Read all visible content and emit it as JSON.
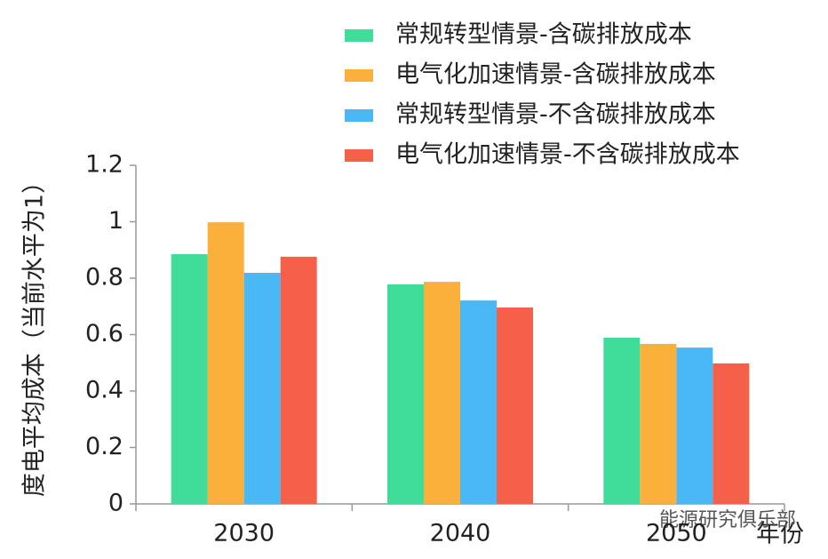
{
  "chart_data": {
    "type": "bar",
    "categories": [
      "2030",
      "2040",
      "2050"
    ],
    "series": [
      {
        "name": "常规转型情景-含碳排放成本",
        "color": "#3fdc9a",
        "values": [
          0.885,
          0.778,
          0.589
        ]
      },
      {
        "name": "电气化加速情景-含碳排放成本",
        "color": "#fbb03b",
        "values": [
          0.998,
          0.787,
          0.567
        ]
      },
      {
        "name": "常规转型情景-不含碳排放成本",
        "color": "#4ab8f5",
        "values": [
          0.819,
          0.721,
          0.554
        ]
      },
      {
        "name": "电气化加速情景-不含碳排放成本",
        "color": "#f5604a",
        "values": [
          0.876,
          0.696,
          0.498
        ]
      }
    ],
    "y_label": "度电平均成本（当前水平为1）",
    "x_label": "年份",
    "annotation": "能源研究俱乐部",
    "ylim": [
      0,
      1.2
    ],
    "yticks": [
      0,
      0.2,
      0.4,
      0.6,
      0.8,
      1,
      1.2
    ],
    "grid": false,
    "legend": "top-right"
  }
}
